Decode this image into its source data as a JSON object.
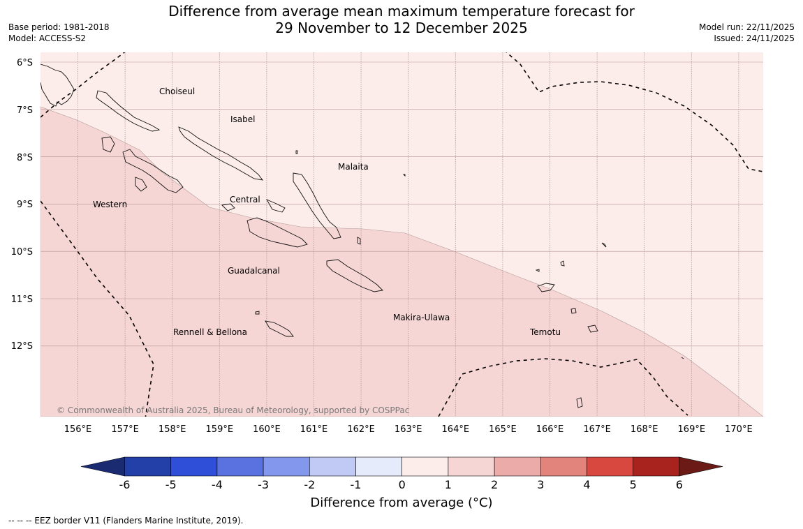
{
  "title": {
    "line1": "Difference from average mean maximum temperature forecast for",
    "line2": "29 November to 12 December 2025"
  },
  "meta_left": {
    "base_period": "Base period: 1981-2018",
    "model": "Model: ACCESS-S2"
  },
  "meta_right": {
    "model_run": "Model run: 22/11/2025",
    "issued": "Issued: 24/11/2025"
  },
  "map": {
    "lat_labels": [
      "6°S",
      "7°S",
      "8°S",
      "9°S",
      "10°S",
      "11°S",
      "12°S"
    ],
    "lon_labels": [
      "156°E",
      "157°E",
      "158°E",
      "159°E",
      "160°E",
      "161°E",
      "162°E",
      "163°E",
      "164°E",
      "165°E",
      "166°E",
      "167°E",
      "168°E",
      "169°E",
      "170°E"
    ],
    "places": [
      "Choiseul",
      "Isabel",
      "Malaita",
      "Western",
      "Central",
      "Guadalcanal",
      "Makira-Ulawa",
      "Rennell & Bellona",
      "Temotu"
    ],
    "copyright": "© Commonwealth of Australia 2025, Bureau of Meteorology, supported by COSPPac",
    "colors": {
      "anomaly_0_1": "#fcecea",
      "anomaly_1_2": "#f6d6d4",
      "grid": "#b39494",
      "eez": "#000000"
    }
  },
  "colorbar": {
    "ticks": [
      "-6",
      "-5",
      "-4",
      "-3",
      "-2",
      "-1",
      "0",
      "1",
      "2",
      "3",
      "4",
      "5",
      "6"
    ],
    "colors": [
      "#233fa8",
      "#2f4fd9",
      "#5a72df",
      "#8397ec",
      "#c1c9f5",
      "#e6ebfc",
      "#fcecea",
      "#f6d6d4",
      "#ebaba8",
      "#e2837c",
      "#d9483f",
      "#a8231e"
    ],
    "under_color": "#1b2b72",
    "over_color": "#6b1a16",
    "label": "Difference from average (°C)"
  },
  "footnote": "--  --  -- EEZ border V11 (Flanders Marine Institute, 2019)."
}
